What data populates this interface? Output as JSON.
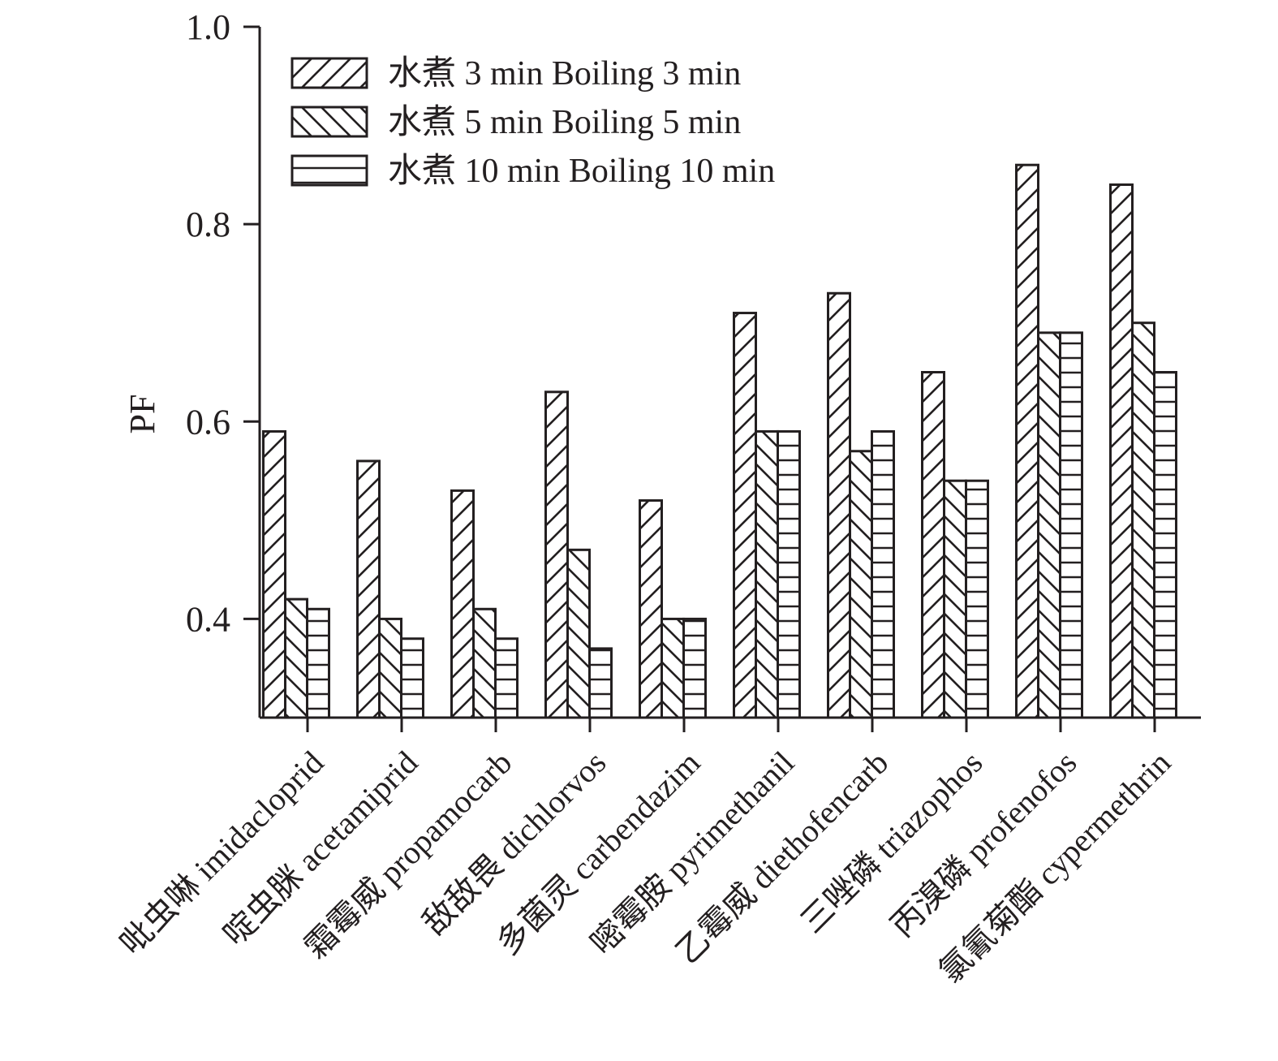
{
  "chart_data": {
    "type": "bar",
    "ylabel": "PF",
    "xlabel": "",
    "ylim": [
      0.3,
      1.0
    ],
    "yticks": [
      0.4,
      0.6,
      0.8,
      1.0
    ],
    "ytick_labels": [
      "0.4",
      "0.6",
      "0.8",
      "1.0"
    ],
    "categories": [
      "吡虫啉 imidacloprid",
      "啶虫脒 acetamiprid",
      "霜霉威 propamocarb",
      "敌敌畏 dichlorvos",
      "多菌灵 carbendazim",
      "嘧霉胺 pyrimethanil",
      "乙霉威 diethofencarb",
      "三唑磷 triazophos",
      "丙溴磷 profenofos",
      "氯氰菊酯 cypermethrin"
    ],
    "series": [
      {
        "name": "水煮 3 min Boiling 3 min",
        "pattern": "diag-up",
        "values": [
          0.59,
          0.56,
          0.53,
          0.63,
          0.52,
          0.71,
          0.73,
          0.65,
          0.86,
          0.84
        ]
      },
      {
        "name": "水煮 5 min Boiling 5 min",
        "pattern": "diag-down",
        "values": [
          0.42,
          0.4,
          0.41,
          0.47,
          0.4,
          0.59,
          0.57,
          0.54,
          0.69,
          0.7
        ]
      },
      {
        "name": "水煮 10 min Boiling 10 min",
        "pattern": "horizontal",
        "values": [
          0.41,
          0.38,
          0.38,
          0.37,
          0.4,
          0.59,
          0.59,
          0.54,
          0.69,
          0.65
        ]
      }
    ],
    "legend_position": "top-left",
    "grid": false,
    "colors": {
      "ink": "#231f20",
      "fill": "#ffffff"
    }
  }
}
